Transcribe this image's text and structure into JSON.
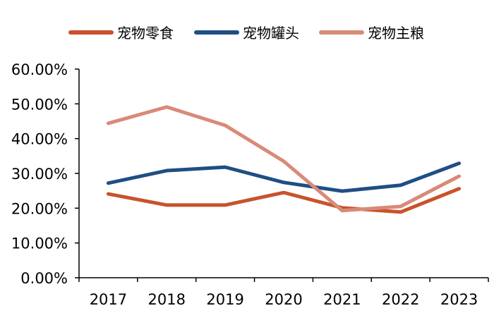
{
  "chart_data": {
    "type": "line",
    "title": "",
    "xlabel": "",
    "ylabel": "",
    "categories": [
      "2017",
      "2018",
      "2019",
      "2020",
      "2021",
      "2022",
      "2023"
    ],
    "ylim": [
      0,
      60
    ],
    "yticks": [
      "0.00%",
      "10.00%",
      "20.00%",
      "30.00%",
      "40.00%",
      "50.00%",
      "60.00%"
    ],
    "ytick_values": [
      0,
      10,
      20,
      30,
      40,
      50,
      60
    ],
    "grid": false,
    "legend_placement": "top",
    "series": [
      {
        "name": "宠物零食",
        "color": "#C8532A",
        "values": [
          24.1,
          20.9,
          20.9,
          24.5,
          20.1,
          18.9,
          25.6
        ]
      },
      {
        "name": "宠物罐头",
        "color": "#1F4E84",
        "values": [
          27.2,
          30.8,
          31.8,
          27.4,
          24.9,
          26.6,
          32.9
        ]
      },
      {
        "name": "宠物主粮",
        "color": "#D98A78",
        "values": [
          44.4,
          49.1,
          43.8,
          33.5,
          19.3,
          20.5,
          29.2
        ]
      }
    ]
  }
}
